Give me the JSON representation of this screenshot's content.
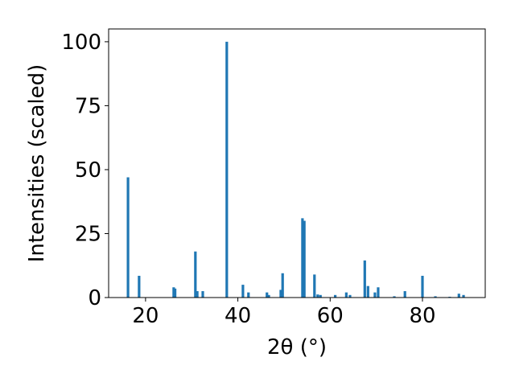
{
  "chart_data": {
    "type": "bar",
    "xlabel": "2θ (°)",
    "ylabel": "Intensities (scaled)",
    "x": [
      16.2,
      18.6,
      26.1,
      26.4,
      30.8,
      31.2,
      32.4,
      37.6,
      41.1,
      42.3,
      46.3,
      46.7,
      49.3,
      49.7,
      54.0,
      54.4,
      56.6,
      57.3,
      57.9,
      61.1,
      63.5,
      64.3,
      67.5,
      68.2,
      69.7,
      70.4,
      73.9,
      76.2,
      80.0,
      82.8,
      85.9,
      87.9,
      88.9
    ],
    "values": [
      47,
      8.5,
      4,
      3.5,
      18,
      2.5,
      2.5,
      100,
      5,
      2,
      2,
      1,
      3,
      9.5,
      31,
      30,
      9,
      1.2,
      1,
      1,
      2,
      1,
      14.5,
      4.5,
      2,
      4,
      0.5,
      2.5,
      8.5,
      0.5,
      0.3,
      1.5,
      1
    ],
    "color": "#1f77b4",
    "xlim": [
      12,
      93.6
    ],
    "ylim": [
      0,
      105
    ],
    "xticks": [
      20,
      40,
      60,
      80
    ],
    "yticks": [
      0,
      25,
      50,
      75,
      100
    ],
    "grid": false
  }
}
